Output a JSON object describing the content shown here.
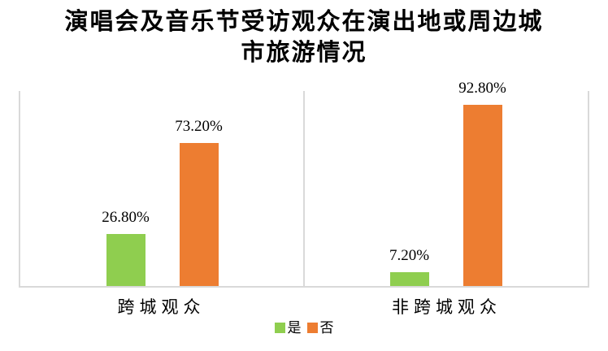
{
  "page": {
    "background": "#ffffff"
  },
  "chart_data": {
    "type": "bar",
    "title": "演唱会及音乐节受访观众在演出地或周边城市旅游情况",
    "title_lines": [
      "演唱会及音乐节受访观众在演出地或周边城",
      "市旅游情况"
    ],
    "categories": [
      "跨城观众",
      "非跨城观众"
    ],
    "series": [
      {
        "name": "是",
        "color": "#8FCE4F",
        "values": [
          26.8,
          7.2
        ],
        "labels": [
          "26.80%",
          "7.20%"
        ]
      },
      {
        "name": "否",
        "color": "#ED7D31",
        "values": [
          73.2,
          92.8
        ],
        "labels": [
          "73.20%",
          "92.80%"
        ]
      }
    ],
    "ylim": [
      0,
      100
    ],
    "grid": false,
    "y_axis_visible": false,
    "legend_position": "bottom",
    "axis_color": "#D9D9D9",
    "text_color": "#000000"
  }
}
